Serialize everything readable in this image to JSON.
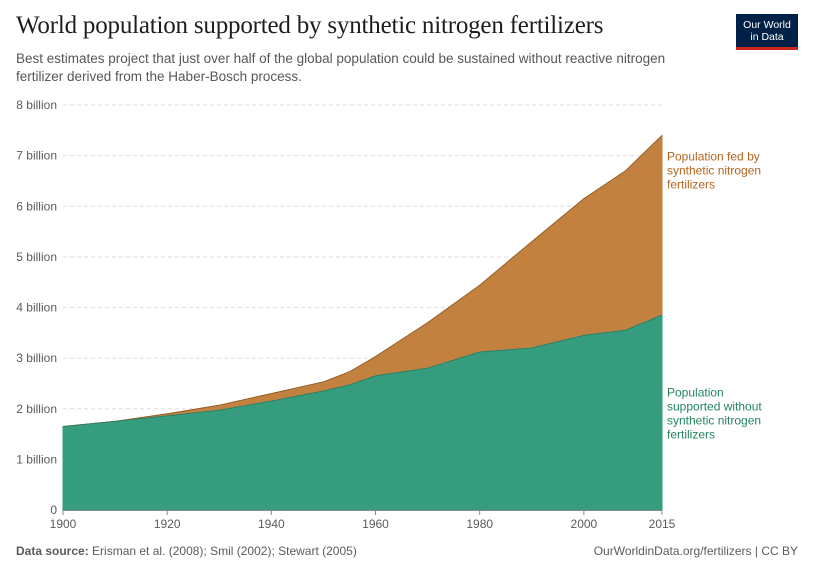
{
  "title": "World population supported by synthetic nitrogen fertilizers",
  "subtitle": "Best estimates project that just over half of the global population could be sustained without reactive nitrogen fertilizer derived from the Haber-Bosch process.",
  "logo": {
    "line1": "Our World",
    "line2": "in Data"
  },
  "footer": {
    "source_label": "Data source:",
    "source_text": " Erisman et al. (2008); Smil (2002); Stewart (2005)",
    "url_text": "OurWorldinData.org/fertilizers | CC BY"
  },
  "colors": {
    "without": "#359d7e",
    "fed": "#c2813f",
    "without_label": "#24845e",
    "fed_label": "#b5651f",
    "grid": "#dddddd",
    "axis": "#888888"
  },
  "chart_data": {
    "type": "area",
    "stacked": true,
    "x": [
      1900,
      1910,
      1920,
      1930,
      1940,
      1950,
      1955,
      1960,
      1970,
      1980,
      1990,
      2000,
      2008,
      2015
    ],
    "series": [
      {
        "name": "Population supported without synthetic nitrogen fertilizers",
        "label_lines": [
          "Population",
          "supported without",
          "synthetic nitrogen",
          "fertilizers"
        ],
        "values": [
          1.65,
          1.75,
          1.86,
          1.97,
          2.15,
          2.35,
          2.47,
          2.65,
          2.8,
          3.12,
          3.2,
          3.45,
          3.55,
          3.85
        ]
      },
      {
        "name": "Population fed by synthetic nitrogen fertilizers",
        "label_lines": [
          "Population fed by",
          "synthetic nitrogen",
          "fertilizers"
        ],
        "values": [
          0.0,
          0.0,
          0.04,
          0.1,
          0.15,
          0.18,
          0.26,
          0.38,
          0.9,
          1.32,
          2.1,
          2.7,
          3.15,
          3.55
        ]
      }
    ],
    "x_ticks": [
      "1900",
      "1920",
      "1940",
      "1960",
      "1980",
      "2000",
      "2015"
    ],
    "y_ticks": [
      "0",
      "1 billion",
      "2 billion",
      "3 billion",
      "4 billion",
      "5 billion",
      "6 billion",
      "7 billion",
      "8 billion"
    ],
    "xlim": [
      1900,
      2015
    ],
    "ylim": [
      0,
      8
    ],
    "title": "World population supported by synthetic nitrogen fertilizers",
    "xlabel": "",
    "ylabel": "",
    "grid": true
  }
}
